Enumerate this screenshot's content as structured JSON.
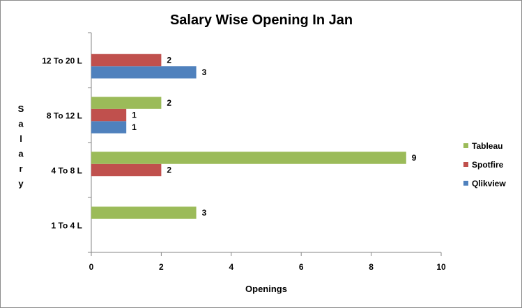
{
  "chart_data": {
    "type": "bar",
    "orientation": "horizontal",
    "title": "Salary Wise Opening In Jan",
    "xlabel": "Openings",
    "ylabel": "Salary",
    "categories": [
      "1 To 4 L",
      "4 To 8 L",
      "8 To 12 L",
      "12 To 20 L"
    ],
    "series": [
      {
        "name": "Qlikview",
        "color": "#4f81bd",
        "values": [
          null,
          null,
          1,
          3
        ]
      },
      {
        "name": "Spotfire",
        "color": "#c0504d",
        "values": [
          null,
          2,
          1,
          2
        ]
      },
      {
        "name": "Tableau",
        "color": "#9bbb59",
        "values": [
          3,
          9,
          2,
          null
        ]
      }
    ],
    "xlim": [
      0,
      10
    ],
    "xticks": [
      0,
      2,
      4,
      6,
      8,
      10
    ],
    "grid": false,
    "legend": "right",
    "data_labels": true
  }
}
